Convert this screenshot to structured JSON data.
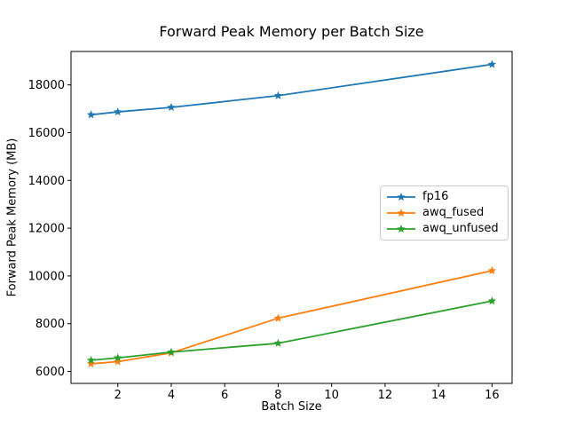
{
  "figure": {
    "background": "#ffffff"
  },
  "chart_data": {
    "type": "line",
    "title": "Forward Peak Memory per Batch Size",
    "xlabel": "Batch Size",
    "ylabel": "Forward Peak Memory (MB)",
    "x": [
      1,
      2,
      4,
      8,
      16
    ],
    "series": [
      {
        "name": "fp16",
        "color": "#1f77b4",
        "values": [
          16750,
          16870,
          17060,
          17550,
          18860
        ]
      },
      {
        "name": "awq_fused",
        "color": "#ff7f0e",
        "values": [
          6320,
          6410,
          6780,
          8230,
          10220
        ]
      },
      {
        "name": "awq_unfused",
        "color": "#2ca02c",
        "values": [
          6470,
          6570,
          6810,
          7180,
          8950
        ]
      }
    ],
    "marker": "star",
    "xlim": [
      0.25,
      16.75
    ],
    "ylim": [
      5500,
      19400
    ],
    "xticks": [
      2,
      4,
      6,
      8,
      10,
      12,
      14,
      16
    ],
    "yticks": [
      6000,
      8000,
      10000,
      12000,
      14000,
      16000,
      18000
    ],
    "grid": false,
    "legend": {
      "position": "center-right"
    }
  }
}
